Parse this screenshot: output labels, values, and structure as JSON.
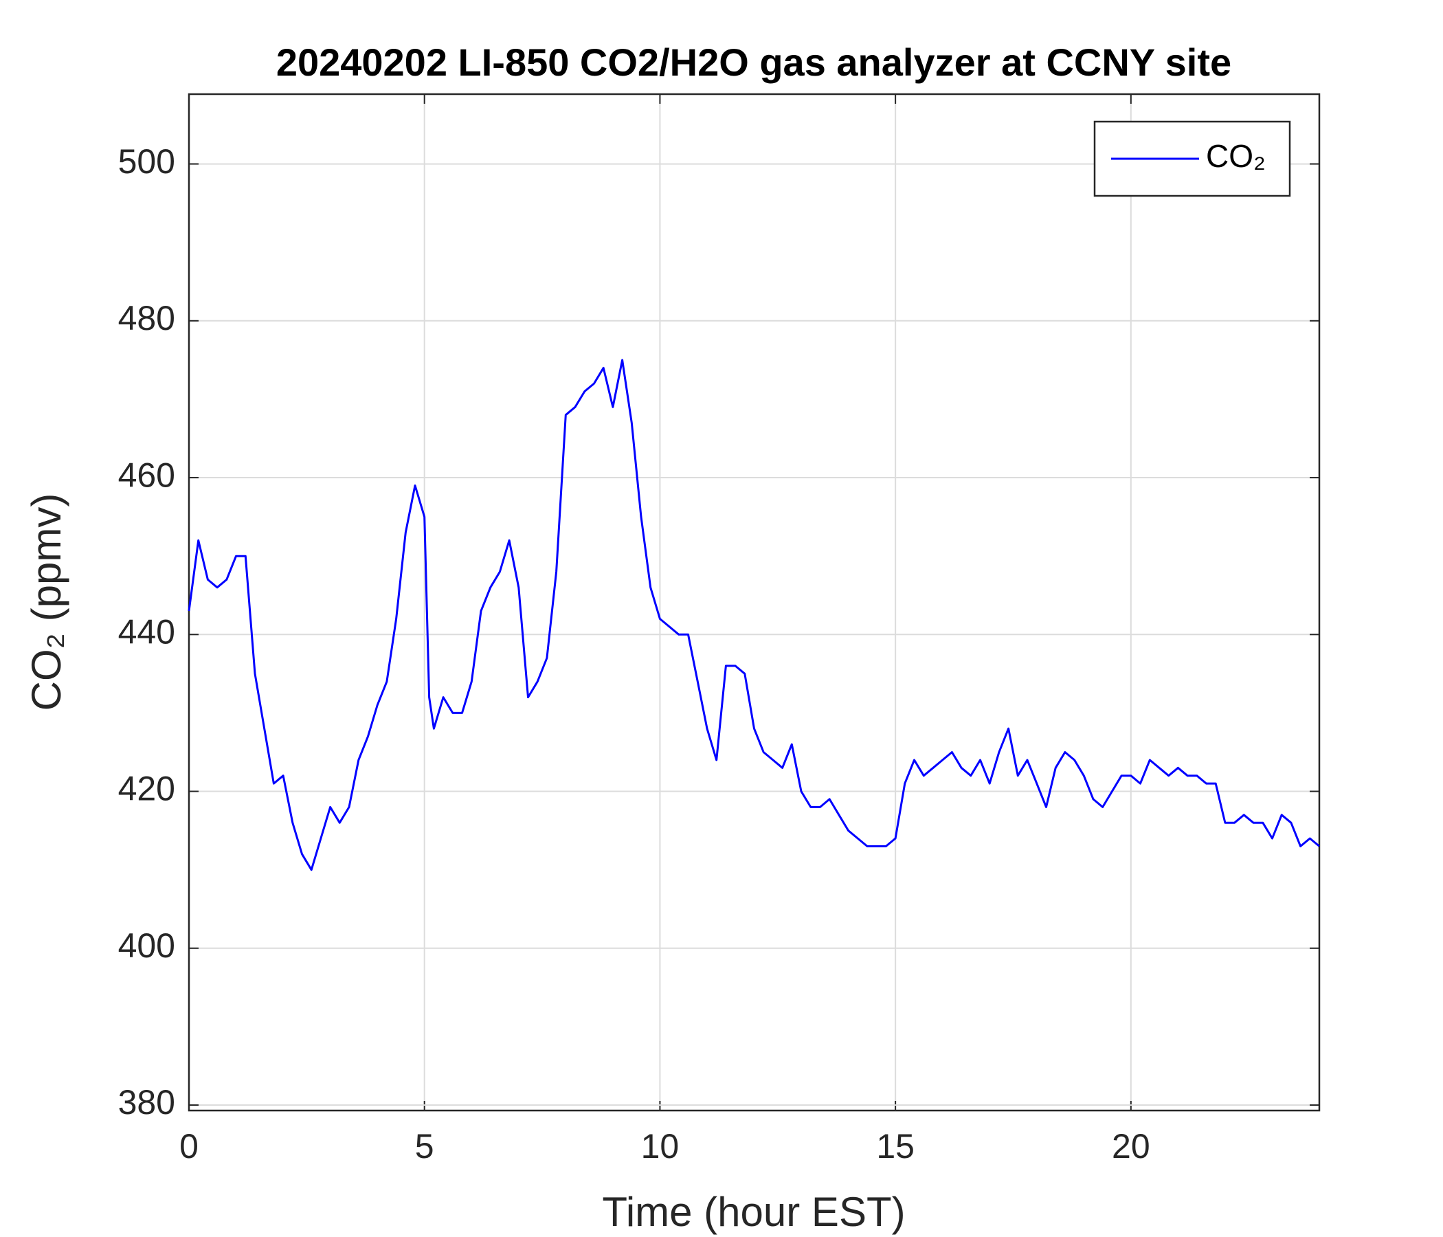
{
  "chart_data": {
    "type": "line",
    "title": "20240202 LI-850 CO2/H2O gas analyzer at CCNY site",
    "x_label": "Time (hour EST)",
    "y_label": "CO₂ (ppmv)",
    "xlim": [
      0,
      24
    ],
    "xticks": [
      0,
      5,
      10,
      15,
      20
    ],
    "ylim": [
      379.3,
      508.9
    ],
    "yticks": [
      380,
      400,
      420,
      440,
      460,
      480,
      500
    ],
    "grid": true,
    "legend": "northeast",
    "x": [
      0,
      0.2,
      0.4,
      0.6,
      0.8,
      1,
      1.2,
      1.4,
      1.6,
      1.8,
      2,
      2.2,
      2.4,
      2.6,
      2.8,
      3,
      3.2,
      3.4,
      3.6,
      3.8,
      4,
      4.2,
      4.4,
      4.6,
      4.8,
      5,
      5.1,
      5.2,
      5.4,
      5.6,
      5.8,
      6,
      6.2,
      6.4,
      6.6,
      6.8,
      7,
      7.2,
      7.4,
      7.6,
      7.8,
      8,
      8.2,
      8.4,
      8.6,
      8.8,
      9,
      9.2,
      9.4,
      9.6,
      9.8,
      10,
      10.2,
      10.4,
      10.6,
      10.8,
      11,
      11.2,
      11.4,
      11.6,
      11.8,
      12,
      12.2,
      12.4,
      12.6,
      12.8,
      13,
      13.2,
      13.4,
      13.6,
      13.8,
      14,
      14.2,
      14.4,
      14.6,
      14.8,
      15,
      15.2,
      15.4,
      15.6,
      15.8,
      16,
      16.2,
      16.4,
      16.6,
      16.8,
      17,
      17.2,
      17.4,
      17.6,
      17.8,
      18,
      18.2,
      18.4,
      18.6,
      18.8,
      19,
      19.2,
      19.4,
      19.6,
      19.8,
      20,
      20.2,
      20.4,
      20.6,
      20.8,
      21,
      21.2,
      21.4,
      21.6,
      21.8,
      22,
      22.2,
      22.4,
      22.6,
      22.8,
      23,
      23.2,
      23.4,
      23.6,
      23.8,
      24
    ],
    "series": [
      {
        "name": "CO₂",
        "color": "#0000ff",
        "values": [
          443,
          452,
          447,
          446,
          447,
          450,
          450,
          435,
          428,
          421,
          422,
          416,
          412,
          410,
          414,
          418,
          416,
          418,
          424,
          427,
          431,
          434,
          442,
          453,
          459,
          455,
          432,
          428,
          432,
          430,
          430,
          434,
          443,
          446,
          448,
          452,
          446,
          432,
          434,
          437,
          448,
          468,
          469,
          471,
          472,
          474,
          469,
          475,
          467,
          455,
          446,
          442,
          441,
          440,
          440,
          434,
          428,
          424,
          436,
          436,
          435,
          428,
          425,
          424,
          423,
          426,
          420,
          418,
          418,
          419,
          417,
          415,
          414,
          413,
          413,
          413,
          414,
          421,
          424,
          422,
          423,
          424,
          425,
          423,
          422,
          424,
          421,
          425,
          428,
          422,
          424,
          421,
          418,
          423,
          425,
          424,
          422,
          419,
          418,
          420,
          422,
          422,
          421,
          424,
          423,
          422,
          423,
          422,
          422,
          421,
          421,
          416,
          416,
          417,
          416,
          416,
          414,
          417,
          416,
          413,
          414,
          413
        ]
      }
    ]
  }
}
